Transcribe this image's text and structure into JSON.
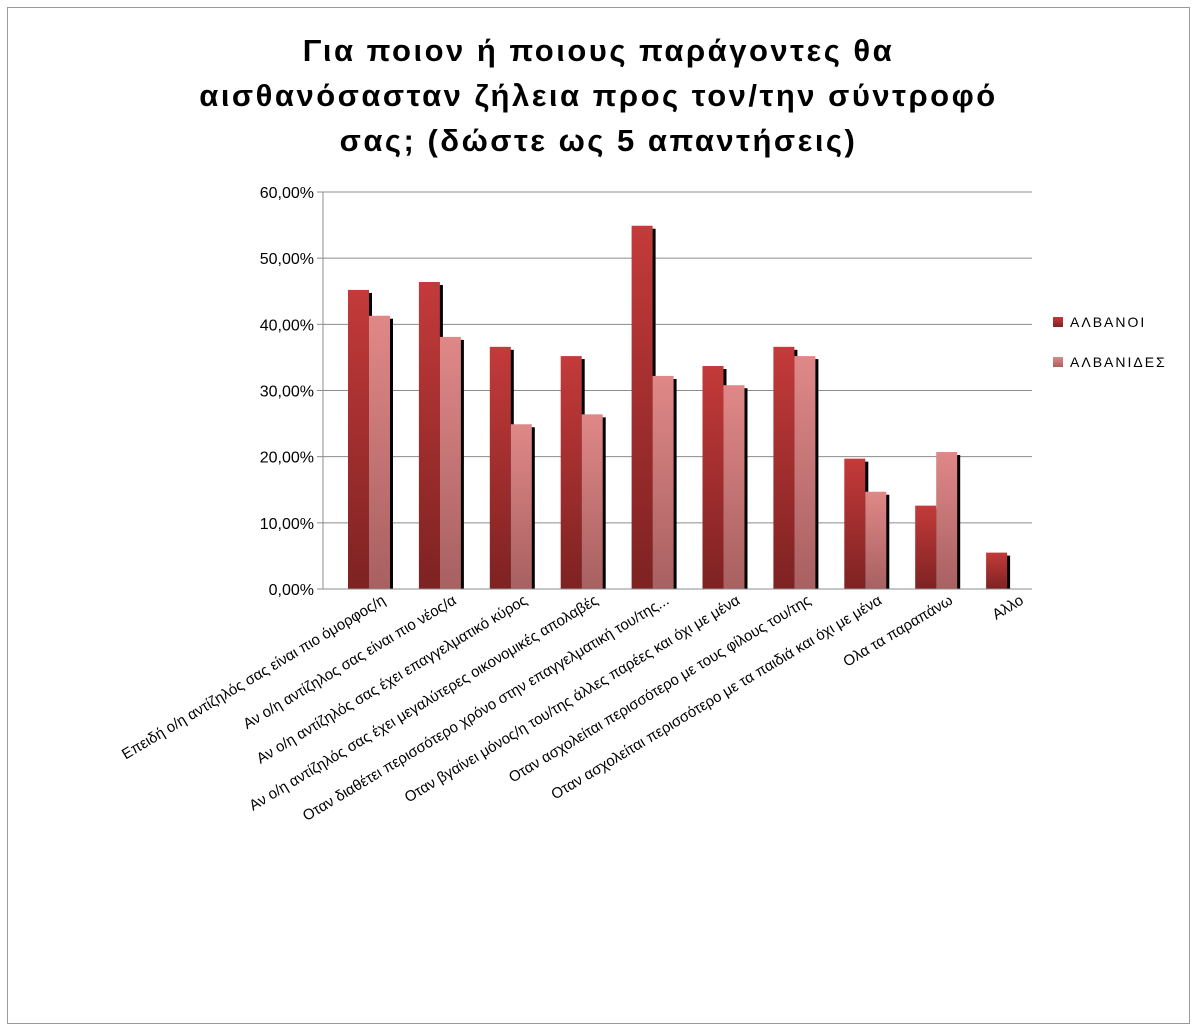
{
  "chart_data": {
    "type": "bar",
    "title": "Για ποιον ή ποιους παράγοντες θα αισθανόσασταν ζήλεια προς τον/την σύντροφό σας; (δώστε ως 5 απαντήσεις)",
    "categories": [
      "Επειδή ο/η αντίζηλός σας είναι πιο όμορφος/η",
      "Αν ο/η αντίζηλος σας είναι πιο νέος/α",
      "Αν ο/η αντίζηλός σας έχει επαγγελματικό κύρος",
      "Αν ο/η αντίζηλός σας έχει μεγαλύτερες οικονομικές απολαβές",
      "Οταν διαθέτει περισσότερο χρόνο στην επαγγελματική του/της...",
      "Οταν βγαίνει μόνος/η του/της άλλες παρέες και όχι με μένα",
      "Οταν ασχολείται περισσότερο με τους φίλους του/της",
      "Οταν ασχολείται περισσότερο με τα παιδιά και όχι με μένα",
      "Ολα τα παραπάνω",
      "Αλλο"
    ],
    "series": [
      {
        "name": "ΑΛΒΑΝΟΙ",
        "color": "#a52a2a",
        "values": [
          45.2,
          46.4,
          36.6,
          35.2,
          54.9,
          33.7,
          36.6,
          19.7,
          12.6,
          5.5
        ]
      },
      {
        "name": "ΑΛΒΑΝΙΔΕΣ",
        "color": "#d98080",
        "values": [
          41.3,
          38.1,
          24.9,
          26.4,
          32.2,
          30.8,
          35.2,
          14.7,
          20.7,
          0
        ]
      }
    ],
    "ylim": [
      0,
      60
    ],
    "yticks": [
      "0,00%",
      "10,00%",
      "20,00%",
      "30,00%",
      "40,00%",
      "50,00%",
      "60,00%"
    ],
    "grid": true,
    "legend_position": "right"
  }
}
